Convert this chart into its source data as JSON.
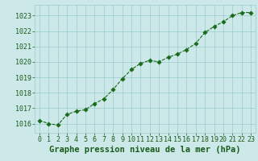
{
  "x": [
    0,
    1,
    2,
    3,
    4,
    5,
    6,
    7,
    8,
    9,
    10,
    11,
    12,
    13,
    14,
    15,
    16,
    17,
    18,
    19,
    20,
    21,
    22,
    23
  ],
  "y": [
    1016.2,
    1016.0,
    1015.9,
    1016.6,
    1016.8,
    1016.9,
    1017.3,
    1017.6,
    1018.2,
    1018.9,
    1019.5,
    1019.9,
    1020.1,
    1020.0,
    1020.3,
    1020.5,
    1020.8,
    1021.2,
    1021.9,
    1022.3,
    1022.6,
    1023.0,
    1023.2,
    1023.2
  ],
  "line_color": "#1a6b1a",
  "marker_color": "#1a6b1a",
  "bg_color": "#cce8e8",
  "grid_color": "#99cccc",
  "xlabel": "Graphe pression niveau de la mer (hPa)",
  "xlabel_color": "#1a5c1a",
  "tick_color": "#1a5c1a",
  "ylim": [
    1015.4,
    1023.7
  ],
  "xlim": [
    -0.5,
    23.5
  ],
  "yticks": [
    1016,
    1017,
    1018,
    1019,
    1020,
    1021,
    1022,
    1023
  ],
  "xticks": [
    0,
    1,
    2,
    3,
    4,
    5,
    6,
    7,
    8,
    9,
    10,
    11,
    12,
    13,
    14,
    15,
    16,
    17,
    18,
    19,
    20,
    21,
    22,
    23
  ],
  "xlabel_fontsize": 7.5,
  "tick_fontsize": 6.0,
  "linewidth": 0.8,
  "markersize": 2.8
}
